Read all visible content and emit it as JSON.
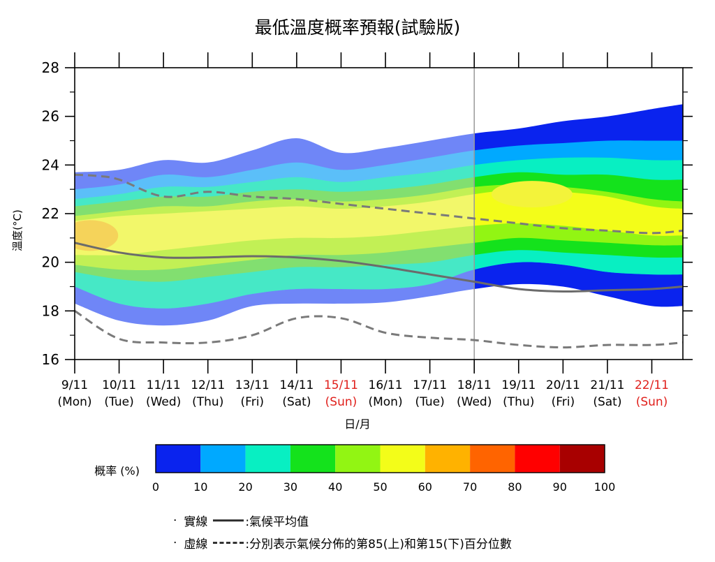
{
  "chart_data": {
    "type": "area",
    "title": "最低溫度概率預報(試驗版)",
    "xlabel": "日/月",
    "ylabel": "溫度(°C)",
    "ylim": [
      16,
      28
    ],
    "yticks": [
      "16",
      "18",
      "20",
      "22",
      "24",
      "26",
      "28"
    ],
    "x_dates": [
      "9/11",
      "10/11",
      "11/11",
      "12/11",
      "13/11",
      "14/11",
      "15/11",
      "16/11",
      "17/11",
      "18/11",
      "19/11",
      "20/11",
      "21/11",
      "22/11"
    ],
    "x_days": [
      "(Mon)",
      "(Tue)",
      "(Wed)",
      "(Thu)",
      "(Fri)",
      "(Sat)",
      "(Sun)",
      "(Mon)",
      "(Tue)",
      "(Wed)",
      "(Thu)",
      "(Fri)",
      "(Sat)",
      "(Sun)"
    ],
    "weekend_flags": [
      false,
      false,
      false,
      false,
      false,
      false,
      true,
      false,
      false,
      false,
      false,
      false,
      false,
      true
    ],
    "weekend_color": "#e0201c",
    "x_index_range": [
      0,
      13.7
    ],
    "split_index": 9,
    "climate_mean": {
      "x": [
        0,
        1,
        2,
        3,
        4,
        5,
        6,
        7,
        8,
        9,
        10,
        11,
        12,
        13,
        13.7
      ],
      "y": [
        20.8,
        20.4,
        20.2,
        20.2,
        20.25,
        20.2,
        20.05,
        19.8,
        19.5,
        19.2,
        18.9,
        18.8,
        18.85,
        18.9,
        19.0
      ]
    },
    "percentile_85": {
      "x": [
        0,
        0.5,
        1,
        2,
        3,
        4,
        5,
        6,
        7,
        8,
        9,
        10,
        11,
        12,
        13,
        13.7
      ],
      "y": [
        23.6,
        23.55,
        23.4,
        22.7,
        22.9,
        22.7,
        22.6,
        22.4,
        22.2,
        22.0,
        21.8,
        21.6,
        21.4,
        21.3,
        21.2,
        21.3
      ]
    },
    "percentile_15": {
      "x": [
        0,
        1,
        2,
        3,
        4,
        5,
        6,
        7,
        8,
        9,
        10,
        11,
        12,
        13,
        13.7
      ],
      "y": [
        18.0,
        16.85,
        16.7,
        16.7,
        17.0,
        17.7,
        17.7,
        17.1,
        16.9,
        16.8,
        16.6,
        16.5,
        16.6,
        16.6,
        16.7
      ]
    },
    "probability_bands": {
      "x": [
        0,
        1,
        2,
        3,
        4,
        5,
        6,
        7,
        8,
        9,
        10,
        11,
        12,
        13,
        13.7
      ],
      "outer": {
        "upper": [
          23.7,
          23.8,
          24.2,
          24.1,
          24.6,
          25.1,
          24.5,
          24.7,
          25.0,
          25.3,
          25.5,
          25.8,
          26.0,
          26.3,
          26.5
        ],
        "lower": [
          18.3,
          17.6,
          17.4,
          17.6,
          18.2,
          18.3,
          18.3,
          18.35,
          18.6,
          18.9,
          19.1,
          19.0,
          18.6,
          18.2,
          18.2
        ]
      },
      "p10": {
        "upper": [
          23.0,
          23.2,
          23.6,
          23.5,
          23.8,
          24.1,
          23.8,
          24.0,
          24.3,
          24.6,
          24.8,
          24.9,
          25.0,
          25.0,
          25.0
        ],
        "lower": [
          19.0,
          18.3,
          18.1,
          18.3,
          18.7,
          18.9,
          18.9,
          18.9,
          19.1,
          19.7,
          20.0,
          19.9,
          19.6,
          19.5,
          19.5
        ]
      },
      "p20": {
        "upper": [
          22.6,
          22.8,
          23.1,
          23.1,
          23.3,
          23.5,
          23.3,
          23.5,
          23.7,
          24.0,
          24.2,
          24.3,
          24.3,
          24.2,
          24.2
        ]
      },
      "p30": {
        "upper": [
          22.3,
          22.5,
          22.7,
          22.7,
          22.9,
          23.0,
          22.9,
          23.0,
          23.2,
          23.5,
          23.7,
          23.6,
          23.6,
          23.4,
          23.4
        ],
        "lower": [
          19.6,
          19.3,
          19.2,
          19.4,
          19.6,
          19.8,
          19.8,
          19.9,
          20.0,
          20.3,
          20.5,
          20.4,
          20.3,
          20.2,
          20.2
        ]
      },
      "p40": {
        "upper": [
          21.9,
          22.1,
          22.3,
          22.3,
          22.5,
          22.6,
          22.5,
          22.6,
          22.8,
          23.1,
          23.2,
          23.1,
          22.9,
          22.6,
          22.5
        ],
        "lower": [
          19.9,
          19.7,
          19.7,
          19.9,
          20.1,
          20.3,
          20.3,
          20.4,
          20.6,
          20.8,
          21.0,
          20.9,
          20.8,
          20.7,
          20.7
        ]
      },
      "p50": {
        "upper": [
          21.7,
          21.9,
          22.0,
          22.1,
          22.2,
          22.3,
          22.2,
          22.3,
          22.5,
          22.8,
          23.0,
          22.9,
          22.7,
          22.3,
          22.2
        ],
        "lower": [
          20.3,
          20.3,
          20.5,
          20.7,
          20.9,
          21.0,
          21.0,
          21.1,
          21.3,
          21.5,
          21.6,
          21.5,
          21.3,
          21.1,
          21.1
        ]
      }
    },
    "colorbar": {
      "label": "概率 (%)",
      "ticks": [
        "0",
        "10",
        "20",
        "30",
        "40",
        "50",
        "60",
        "70",
        "80",
        "90",
        "100"
      ],
      "colors": [
        "#0a23ee",
        "#00a9ff",
        "#08efc2",
        "#14e21c",
        "#92f513",
        "#f3fd19",
        "#ffb200",
        "#ff6400",
        "#ff0000",
        "#a80000"
      ]
    }
  },
  "legend": {
    "solid_label": "實線",
    "solid_desc": ":氣候平均值",
    "dashed_label": "虛線",
    "dashed_desc": ":分別表示氣候分佈的第85(上)和第15(下)百分位數"
  }
}
